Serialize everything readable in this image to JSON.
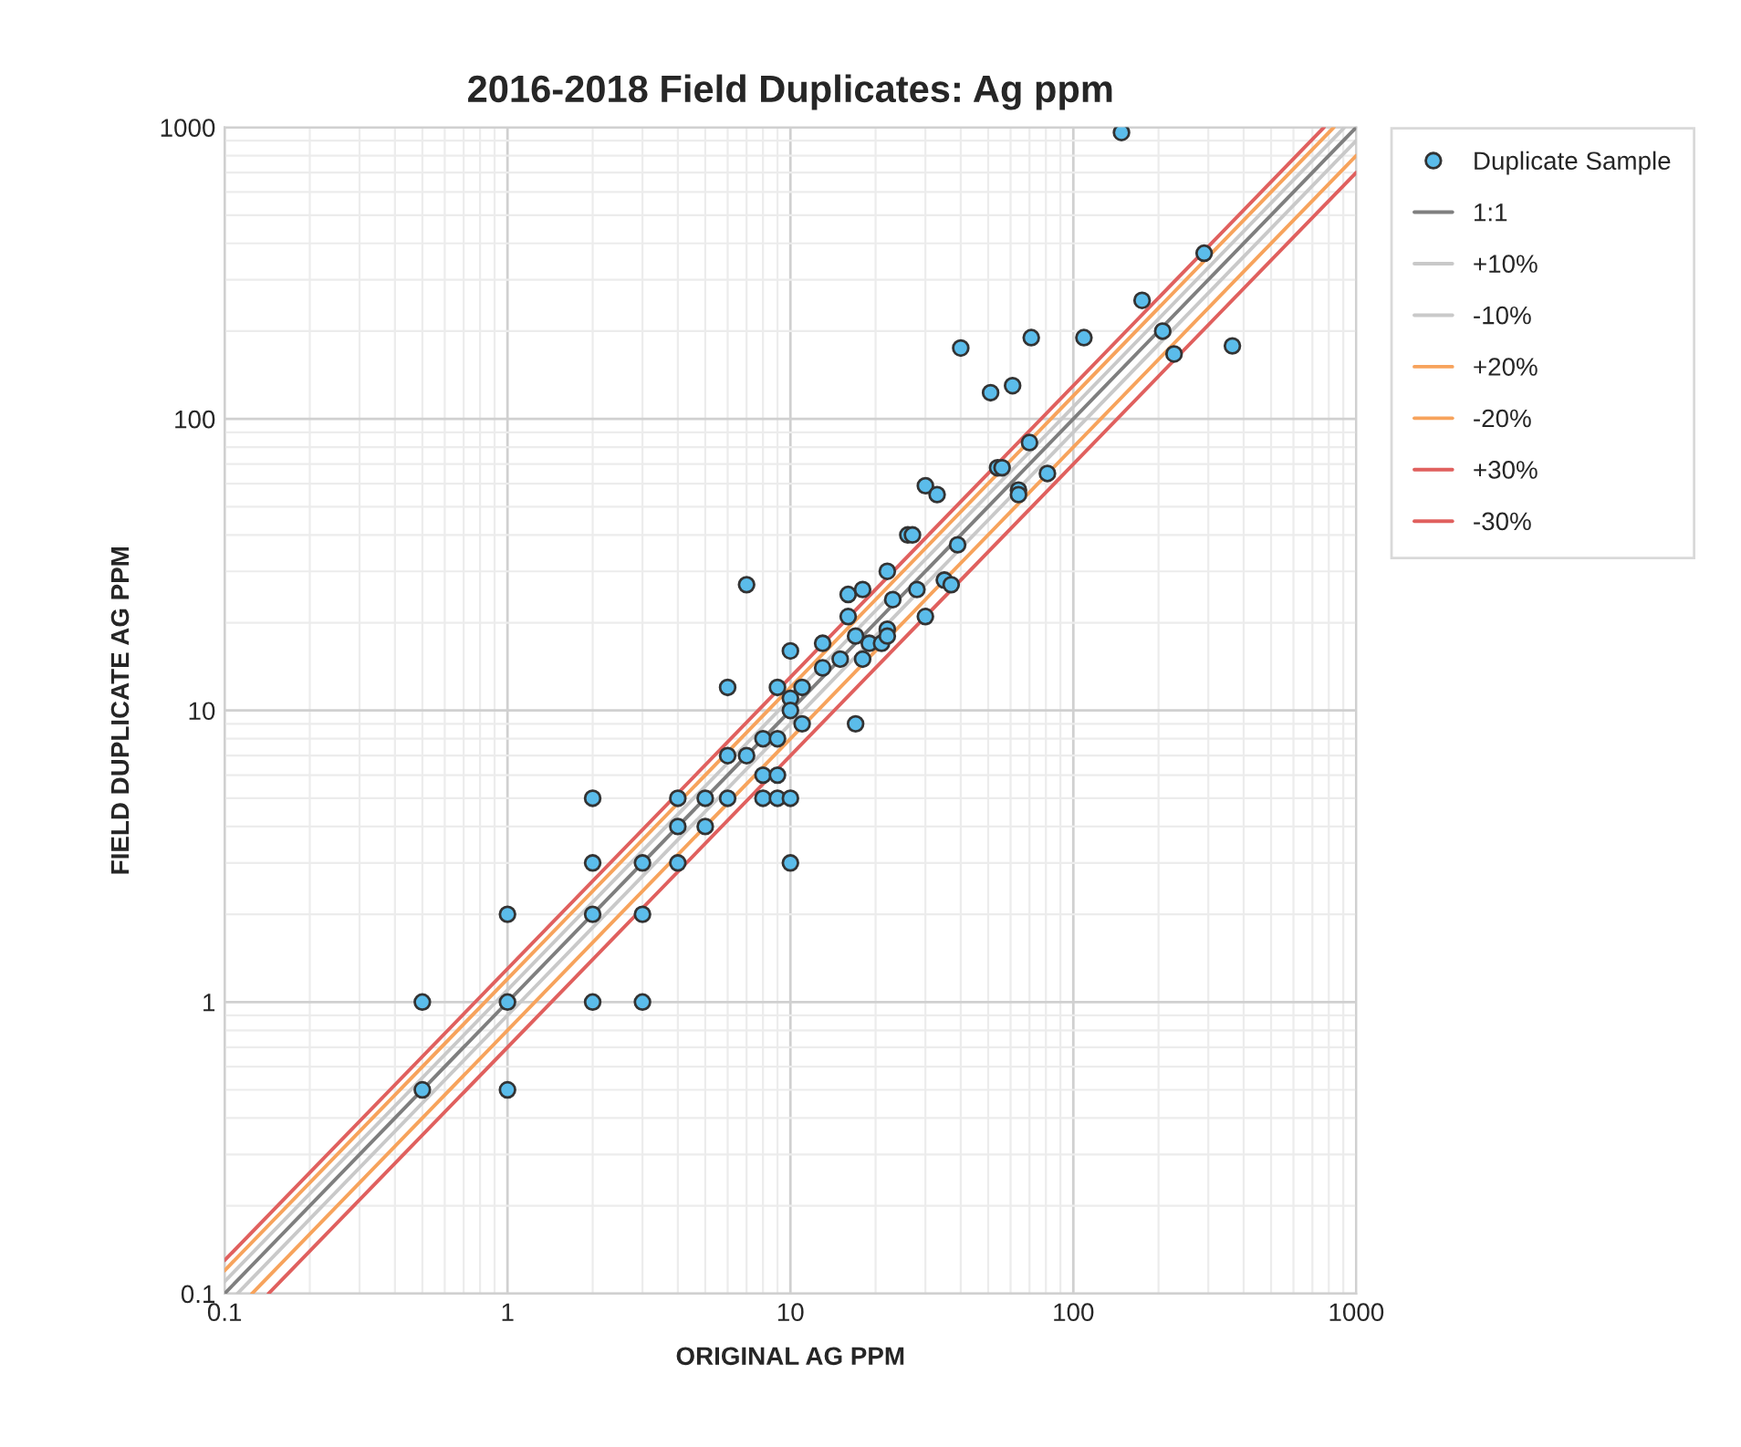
{
  "chart_data": {
    "type": "scatter",
    "title": "2016-2018 Field Duplicates: Ag ppm",
    "xlabel": "ORIGINAL AG PPM",
    "ylabel": "FIELD DUPLICATE AG PPM",
    "log": "xy",
    "grid": true,
    "legend": "right",
    "xlim": [
      0.1,
      1000
    ],
    "ylim": [
      0.1,
      1000
    ],
    "xticks": [
      0.1,
      1,
      10,
      100,
      1000
    ],
    "yticks": [
      0.1,
      1,
      10,
      100,
      1000
    ],
    "series": [
      {
        "name": "Duplicate Sample",
        "marker": "circle",
        "color": "#5bbcea",
        "x": [
          0.5,
          0.5,
          1,
          1,
          1,
          2,
          2,
          2,
          2,
          3,
          3,
          3,
          4,
          4,
          4,
          5,
          5,
          6,
          6,
          6,
          7,
          7,
          8,
          8,
          8,
          9,
          9,
          9,
          9,
          10,
          10,
          10,
          10,
          10,
          11,
          11,
          13,
          13,
          15,
          16,
          16,
          17,
          18,
          18,
          19,
          17,
          21,
          22,
          22,
          22,
          23,
          26,
          27,
          28,
          30,
          30,
          33,
          35,
          37,
          39,
          40,
          51,
          54,
          56,
          61,
          64,
          64,
          71,
          70,
          81,
          109,
          148,
          175,
          207,
          227,
          290,
          365
        ],
        "values": [
          1,
          0.5,
          2,
          1,
          0.5,
          5,
          3,
          2,
          1,
          3,
          2,
          1,
          5,
          4,
          3,
          5,
          4,
          7,
          5,
          12,
          7,
          27,
          8,
          6,
          5,
          8,
          12,
          6,
          5,
          16,
          11,
          10,
          5,
          3,
          12,
          9,
          17,
          14,
          15,
          25,
          21,
          18,
          26,
          15,
          17,
          9,
          17,
          19,
          18,
          30,
          24,
          40,
          40,
          26,
          59,
          21,
          55,
          28,
          27,
          37,
          175,
          123,
          68,
          68,
          130,
          57,
          55,
          190,
          83,
          65,
          190,
          960,
          255,
          200,
          167,
          370,
          178
        ]
      },
      {
        "name": "1:1",
        "type": "line",
        "color": "#7f7f7f",
        "x": [
          0.1,
          1000
        ],
        "values": [
          0.1,
          1000
        ]
      },
      {
        "name": "+10%",
        "type": "line",
        "color": "#c9c9c9",
        "x": [
          0.1,
          909
        ],
        "values": [
          0.11,
          1000
        ]
      },
      {
        "name": "-10%",
        "type": "line",
        "color": "#c9c9c9",
        "x": [
          0.111,
          1000
        ],
        "values": [
          0.1,
          900
        ]
      },
      {
        "name": "+20%",
        "type": "line",
        "color": "#f7a35c",
        "x": [
          0.1,
          833
        ],
        "values": [
          0.12,
          1000
        ]
      },
      {
        "name": "-20%",
        "type": "line",
        "color": "#f7a35c",
        "x": [
          0.125,
          1000
        ],
        "values": [
          0.1,
          800
        ]
      },
      {
        "name": "+30%",
        "type": "line",
        "color": "#e0605e",
        "x": [
          0.1,
          769
        ],
        "values": [
          0.13,
          1000
        ]
      },
      {
        "name": "-30%",
        "type": "line",
        "color": "#e0605e",
        "x": [
          0.143,
          1000
        ],
        "values": [
          0.1,
          700
        ]
      }
    ]
  }
}
